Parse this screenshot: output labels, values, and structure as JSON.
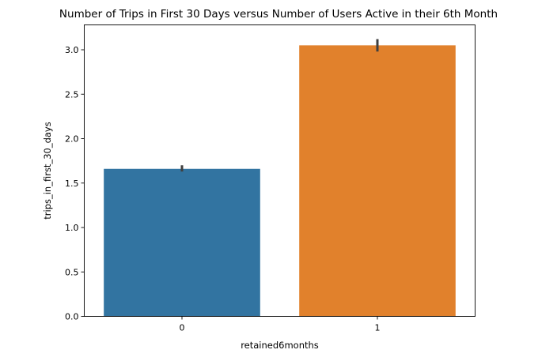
{
  "chart_data": {
    "type": "bar",
    "title": "Number of Trips in First 30 Days versus Number of Users Active in their 6th Month",
    "xlabel": "retained6months",
    "ylabel": "trips_in_first_30_days",
    "categories": [
      "0",
      "1"
    ],
    "values": [
      1.66,
      3.05
    ],
    "error_bars": [
      [
        1.63,
        1.7
      ],
      [
        2.98,
        3.12
      ]
    ],
    "colors": [
      "#3274a1",
      "#e1812c"
    ],
    "error_bar_color": "#3f3f3f",
    "ylim": [
      0,
      3.28
    ],
    "yticks": [
      0.0,
      0.5,
      1.0,
      1.5,
      2.0,
      2.5,
      3.0
    ],
    "ytick_labels": [
      "0.0",
      "0.5",
      "1.0",
      "1.5",
      "2.0",
      "2.5",
      "3.0"
    ],
    "grid": false,
    "legend": "none"
  }
}
